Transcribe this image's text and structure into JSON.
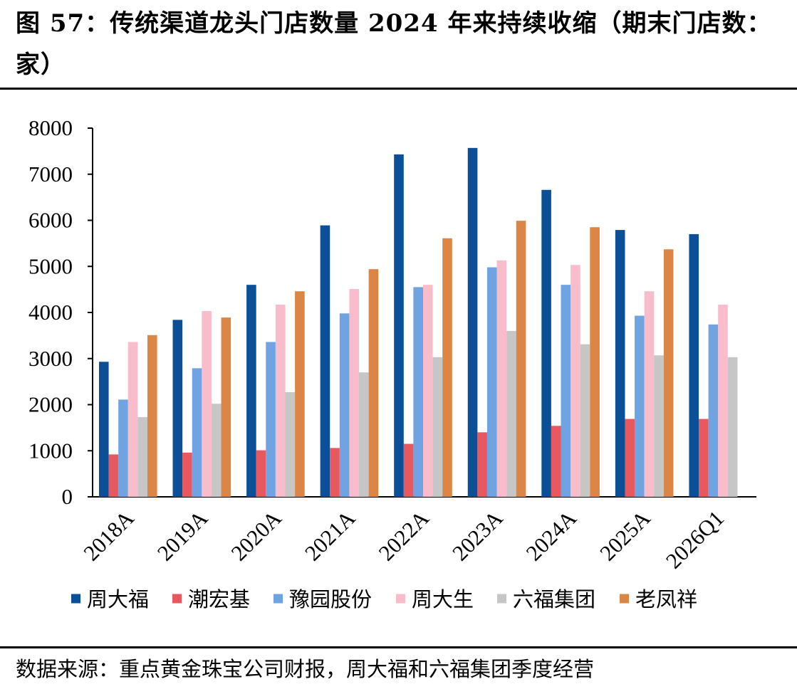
{
  "figure": {
    "title": "图 57：传统渠道龙头门店数量 2024 年来持续收缩（期末门店数：家）",
    "source": "数据来源：重点黄金珠宝公司财报，周大福和六福集团季度经营"
  },
  "chart_data": {
    "type": "bar",
    "categories": [
      "2018A",
      "2019A",
      "2020A",
      "2021A",
      "2022A",
      "2023A",
      "2024A",
      "2025A",
      "2026Q1"
    ],
    "ylim": [
      0,
      8000
    ],
    "yticks": [
      0,
      1000,
      2000,
      3000,
      4000,
      5000,
      6000,
      7000,
      8000
    ],
    "grid": false,
    "legend_position": "bottom",
    "series": [
      {
        "name": "周大福",
        "color": "#0b4f96",
        "values": [
          2930,
          3840,
          4600,
          5890,
          7430,
          7570,
          6660,
          5790,
          5700
        ]
      },
      {
        "name": "潮宏基",
        "color": "#e8585f",
        "values": [
          920,
          960,
          1010,
          1060,
          1150,
          1400,
          1540,
          1690,
          1690
        ]
      },
      {
        "name": "豫园股份",
        "color": "#6fa3e2",
        "values": [
          2110,
          2790,
          3360,
          3980,
          4550,
          4980,
          4600,
          3930,
          3740
        ]
      },
      {
        "name": "周大生",
        "color": "#f9bccb",
        "values": [
          3360,
          4030,
          4170,
          4510,
          4600,
          5130,
          5030,
          4460,
          4170
        ]
      },
      {
        "name": "六福集团",
        "color": "#c6c6c6",
        "values": [
          1730,
          2020,
          2270,
          2700,
          3030,
          3600,
          3310,
          3070,
          3030
        ]
      },
      {
        "name": "老凤祥",
        "color": "#db8644",
        "values": [
          3510,
          3890,
          4460,
          4940,
          5610,
          5990,
          5850,
          5370,
          null
        ]
      }
    ]
  }
}
